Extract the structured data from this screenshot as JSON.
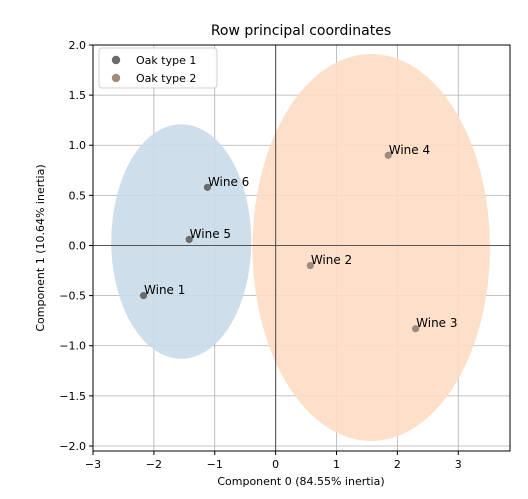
{
  "chart_data": {
    "type": "scatter",
    "title": "Row principal coordinates",
    "xlabel": "Component 0 (84.55% inertia)",
    "ylabel": "Component 1 (10.64% inertia)",
    "xlim": [
      -3.0,
      3.85
    ],
    "ylim": [
      -2.05,
      2.0
    ],
    "xticks": [
      -3,
      -2,
      -1,
      0,
      1,
      2,
      3
    ],
    "xtick_labels": [
      "−3",
      "−2",
      "−1",
      "0",
      "1",
      "2",
      "3"
    ],
    "yticks": [
      -2.0,
      -1.5,
      -1.0,
      -0.5,
      0.0,
      0.5,
      1.0,
      1.5,
      2.0
    ],
    "ytick_labels": [
      "−2.0",
      "−1.5",
      "−1.0",
      "−0.5",
      "0.0",
      "0.5",
      "1.0",
      "1.5",
      "2.0"
    ],
    "grid": true,
    "legend_position": "top-left",
    "series": [
      {
        "name": "Oak type 1",
        "color": "#6b6b6b",
        "ellipse_color": "#c9dae8",
        "ellipse": {
          "center": [
            -1.55,
            0.04
          ],
          "radius_x": 1.15,
          "radius_y": 1.17
        },
        "points": [
          {
            "label": "Wine 1",
            "x": -2.17,
            "y": -0.5
          },
          {
            "label": "Wine 5",
            "x": -1.42,
            "y": 0.06
          },
          {
            "label": "Wine 6",
            "x": -1.12,
            "y": 0.58
          }
        ]
      },
      {
        "name": "Oak type 2",
        "color": "#a08a7c",
        "ellipse_color": "#fddcc4",
        "ellipse": {
          "center": [
            1.57,
            -0.02
          ],
          "radius_x": 1.95,
          "radius_y": 1.93
        },
        "points": [
          {
            "label": "Wine 2",
            "x": 0.57,
            "y": -0.2
          },
          {
            "label": "Wine 3",
            "x": 2.3,
            "y": -0.83
          },
          {
            "label": "Wine 4",
            "x": 1.85,
            "y": 0.9
          }
        ]
      }
    ]
  }
}
